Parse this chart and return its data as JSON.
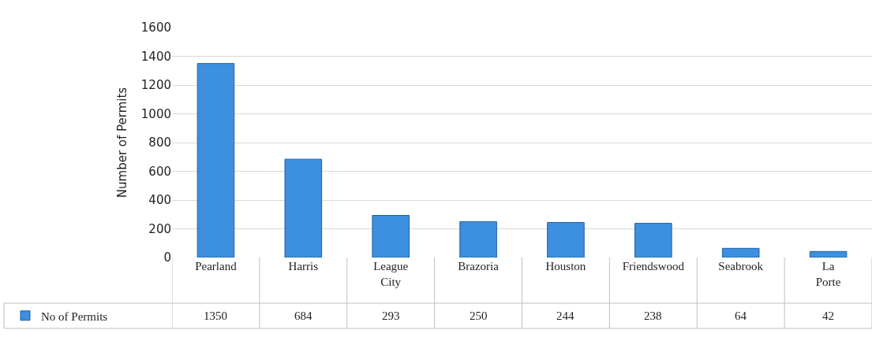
{
  "chart_data": {
    "type": "bar",
    "ylabel": "Number of Permits",
    "categories": [
      "Pearland",
      "Harris",
      "League City",
      "Brazoria",
      "Houston",
      "Friendswood",
      "Seabrook",
      "La Porte"
    ],
    "series": [
      {
        "name": "No of Permits",
        "color": "#3d8fdf",
        "values": [
          1350,
          684,
          293,
          250,
          244,
          238,
          64,
          42
        ]
      }
    ],
    "ylim": [
      0,
      1600
    ],
    "yticks": [
      0,
      200,
      400,
      600,
      800,
      1000,
      1200,
      1400,
      1600
    ],
    "grid": "y",
    "legend": "bottom left",
    "data_labels": true
  }
}
